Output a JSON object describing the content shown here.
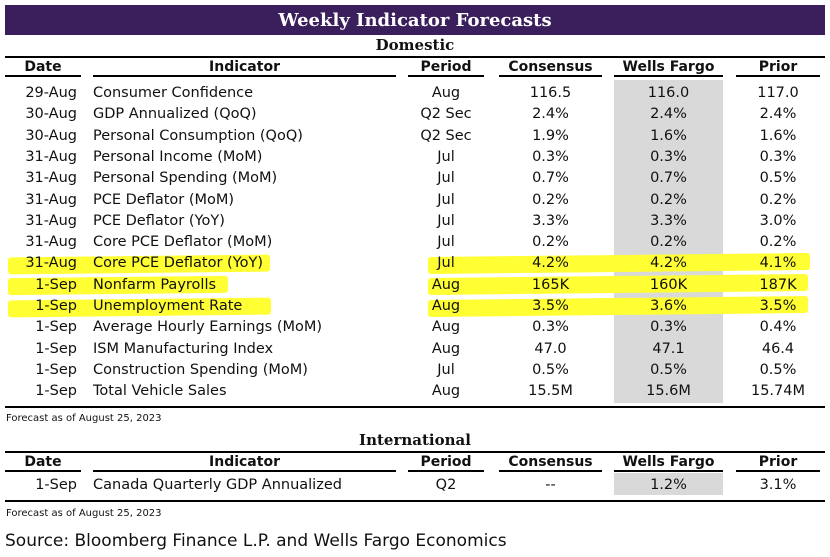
{
  "title": "Weekly Indicator Forecasts",
  "domestic": {
    "section_title": "Domestic",
    "headers": [
      "Date",
      "Indicator",
      "Period",
      "Consensus",
      "Wells Fargo",
      "Prior"
    ],
    "rows": [
      {
        "date": "29-Aug",
        "indicator": "Consumer Confidence",
        "period": "Aug",
        "consensus": "116.5",
        "wells_fargo": "116.0",
        "prior": "117.0"
      },
      {
        "date": "30-Aug",
        "indicator": "GDP Annualized (QoQ)",
        "period": "Q2 Sec",
        "consensus": "2.4%",
        "wells_fargo": "2.4%",
        "prior": "2.4%"
      },
      {
        "date": "30-Aug",
        "indicator": "Personal Consumption (QoQ)",
        "period": "Q2 Sec",
        "consensus": "1.9%",
        "wells_fargo": "1.6%",
        "prior": "1.6%"
      },
      {
        "date": "31-Aug",
        "indicator": "Personal Income (MoM)",
        "period": "Jul",
        "consensus": "0.3%",
        "wells_fargo": "0.3%",
        "prior": "0.3%"
      },
      {
        "date": "31-Aug",
        "indicator": "Personal  Spending (MoM)",
        "period": "Jul",
        "consensus": "0.7%",
        "wells_fargo": "0.7%",
        "prior": "0.5%"
      },
      {
        "date": "31-Aug",
        "indicator": "PCE Deflator (MoM)",
        "period": "Jul",
        "consensus": "0.2%",
        "wells_fargo": "0.2%",
        "prior": "0.2%"
      },
      {
        "date": "31-Aug",
        "indicator": "PCE Deflator (YoY)",
        "period": "Jul",
        "consensus": "3.3%",
        "wells_fargo": "3.3%",
        "prior": "3.0%"
      },
      {
        "date": "31-Aug",
        "indicator": "Core PCE Deflator (MoM)",
        "period": "Jul",
        "consensus": "0.2%",
        "wells_fargo": "0.2%",
        "prior": "0.2%"
      },
      {
        "date": "31-Aug",
        "indicator": "Core PCE Deflator (YoY)",
        "period": "Jul",
        "consensus": "4.2%",
        "wells_fargo": "4.2%",
        "prior": "4.1%"
      },
      {
        "date": "1-Sep",
        "indicator": "Nonfarm Payrolls",
        "period": "Aug",
        "consensus": "165K",
        "wells_fargo": "160K",
        "prior": "187K"
      },
      {
        "date": "1-Sep",
        "indicator": "Unemployment Rate",
        "period": "Aug",
        "consensus": "3.5%",
        "wells_fargo": "3.6%",
        "prior": "3.5%"
      },
      {
        "date": "1-Sep",
        "indicator": "Average Hourly Earnings (MoM)",
        "period": "Aug",
        "consensus": "0.3%",
        "wells_fargo": "0.3%",
        "prior": "0.4%"
      },
      {
        "date": "1-Sep",
        "indicator": "ISM Manufacturing Index",
        "period": "Aug",
        "consensus": "47.0",
        "wells_fargo": "47.1",
        "prior": "46.4"
      },
      {
        "date": "1-Sep",
        "indicator": "Construction Spending (MoM)",
        "period": "Jul",
        "consensus": "0.5%",
        "wells_fargo": "0.5%",
        "prior": "0.5%"
      },
      {
        "date": "1-Sep",
        "indicator": "Total Vehicle Sales",
        "period": "Aug",
        "consensus": "15.5M",
        "wells_fargo": "15.6M",
        "prior": "15.74M"
      }
    ],
    "note": "Forecast as of August 25, 2023"
  },
  "international": {
    "section_title": "International",
    "headers": [
      "Date",
      "Indicator",
      "Period",
      "Consensus",
      "Wells Fargo",
      "Prior"
    ],
    "rows": [
      {
        "date": "1-Sep",
        "indicator": "Canada Quarterly GDP Annualized",
        "period": "Q2",
        "consensus": "--",
        "wells_fargo": "1.2%",
        "prior": "3.1%"
      }
    ],
    "note": "Forecast as of August 25, 2023"
  },
  "source": "Source: Bloomberg Finance L.P. and Wells Fargo Economics",
  "colors": {
    "title_bar": "#3b1f5c",
    "highlight": "#ffff33",
    "wells_fargo_shade": "#d9d9d9"
  }
}
